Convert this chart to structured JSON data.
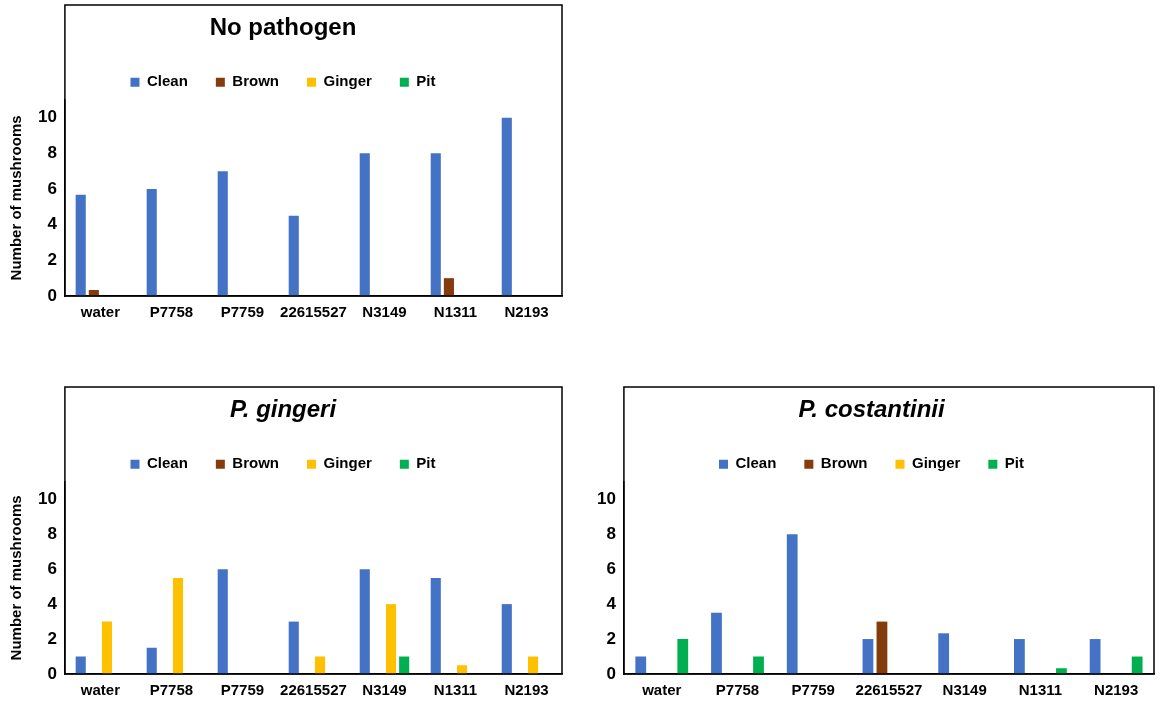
{
  "chart_data": [
    {
      "type": "bar",
      "title": "No pathogen",
      "ylabel": "Number of mushrooms",
      "categories": [
        "water",
        "P7758",
        "P7759",
        "22615527",
        "N3149",
        "N1311",
        "N2193"
      ],
      "series": [
        {
          "name": "Clean",
          "color": "#4472c4",
          "values": [
            5.67,
            6,
            7,
            4.5,
            8,
            8,
            10
          ]
        },
        {
          "name": "Brown",
          "color": "#843c0c",
          "values": [
            0.33,
            0,
            0,
            0,
            0,
            1,
            0
          ]
        },
        {
          "name": "Ginger",
          "color": "#ffc000",
          "values": [
            0,
            0,
            0,
            0,
            0,
            0,
            0
          ]
        },
        {
          "name": "Pit",
          "color": "#00b050",
          "values": [
            0,
            0,
            0,
            0,
            0,
            0,
            0
          ]
        }
      ],
      "ylim": [
        0,
        11
      ],
      "yticks": [
        0,
        2,
        4,
        6,
        8,
        10
      ],
      "grid": false,
      "legend": "top"
    },
    {
      "type": "bar",
      "title": "P. gingeri",
      "ylabel": "Number of mushrooms",
      "categories": [
        "water",
        "P7758",
        "P7759",
        "22615527",
        "N3149",
        "N1311",
        "N2193"
      ],
      "series": [
        {
          "name": "Clean",
          "color": "#4472c4",
          "values": [
            1,
            1.5,
            6,
            3,
            6,
            5.5,
            4
          ]
        },
        {
          "name": "Brown",
          "color": "#843c0c",
          "values": [
            0,
            0,
            0,
            0,
            0,
            0,
            0
          ]
        },
        {
          "name": "Ginger",
          "color": "#ffc000",
          "values": [
            3,
            5.5,
            0,
            1,
            4,
            0.5,
            1
          ]
        },
        {
          "name": "Pit",
          "color": "#00b050",
          "values": [
            0,
            0,
            0,
            0,
            1,
            0,
            0
          ]
        }
      ],
      "ylim": [
        0,
        11
      ],
      "yticks": [
        0,
        2,
        4,
        6,
        8,
        10
      ],
      "grid": false,
      "legend": "top"
    },
    {
      "type": "bar",
      "title": "P. costantinii",
      "categories": [
        "water",
        "P7758",
        "P7759",
        "22615527",
        "N3149",
        "N1311",
        "N2193"
      ],
      "series": [
        {
          "name": "Clean",
          "color": "#4472c4",
          "values": [
            1,
            3.5,
            8,
            2,
            2.33,
            2,
            2
          ]
        },
        {
          "name": "Brown",
          "color": "#843c0c",
          "values": [
            0,
            0,
            0,
            3,
            0,
            0,
            0
          ]
        },
        {
          "name": "Ginger",
          "color": "#ffc000",
          "values": [
            0,
            0,
            0,
            0,
            0,
            0,
            0
          ]
        },
        {
          "name": "Pit",
          "color": "#00b050",
          "values": [
            2,
            1,
            0,
            0,
            0,
            0.33,
            1
          ]
        }
      ],
      "ylim": [
        0,
        11
      ],
      "yticks": [
        0,
        2,
        4,
        6,
        8,
        10
      ],
      "grid": false,
      "legend": "top"
    }
  ]
}
